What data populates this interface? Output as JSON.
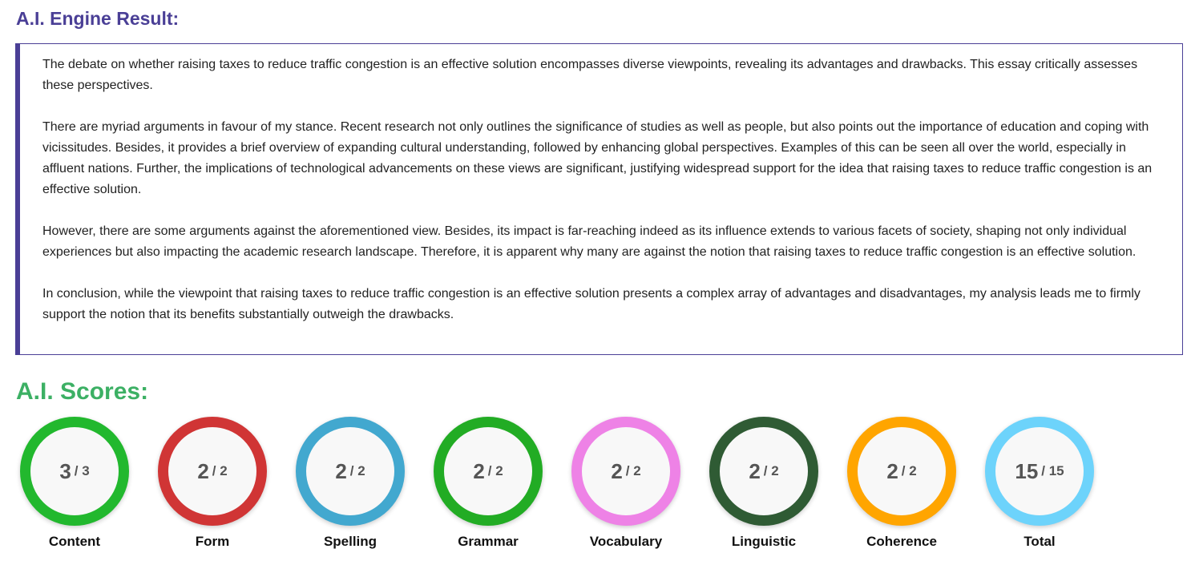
{
  "result_heading": "A.I. Engine Result:",
  "essay": [
    "The debate on whether raising taxes to reduce traffic congestion is an effective solution encompasses diverse viewpoints, revealing its advantages and drawbacks. This essay critically assesses these perspectives.",
    "There are myriad arguments in favour of my stance. Recent research not only outlines the significance of studies as well as people, but also points out the importance of education and coping with vicissitudes. Besides, it provides a brief overview of expanding cultural understanding, followed by enhancing global perspectives. Examples of this can be seen all over the world, especially in affluent nations. Further, the implications of technological advancements on these views are significant, justifying widespread support for the idea that raising taxes to reduce traffic congestion is an effective solution.",
    "However, there are some arguments against the aforementioned view. Besides, its impact is far-reaching indeed as its influence extends to various facets of society, shaping not only individual experiences but also impacting the academic research landscape. Therefore, it is apparent why many are against the notion that raising taxes to reduce traffic congestion is an effective solution.",
    "In conclusion, while the viewpoint that raising taxes to reduce traffic congestion is an effective solution presents a complex array of advantages and disadvantages, my analysis leads me to firmly support the notion that its benefits substantially outweigh the drawbacks."
  ],
  "scores_heading": "A.I. Scores:",
  "scores": [
    {
      "label": "Content",
      "value": "3",
      "max": "/ 3",
      "color": "#22b82e"
    },
    {
      "label": "Form",
      "value": "2",
      "max": "/ 2",
      "color": "#d03535"
    },
    {
      "label": "Spelling",
      "value": "2",
      "max": "/ 2",
      "color": "#42a8cf"
    },
    {
      "label": "Grammar",
      "value": "2",
      "max": "/ 2",
      "color": "#22ac24"
    },
    {
      "label": "Vocabulary",
      "value": "2",
      "max": "/ 2",
      "color": "#ee82e6"
    },
    {
      "label": "Linguistic",
      "value": "2",
      "max": "/ 2",
      "color": "#2f5b34"
    },
    {
      "label": "Coherence",
      "value": "2",
      "max": "/ 2",
      "color": "#ffa500"
    },
    {
      "label": "Total",
      "value": "15",
      "max": "/ 15",
      "color": "#6dd3fb"
    }
  ]
}
